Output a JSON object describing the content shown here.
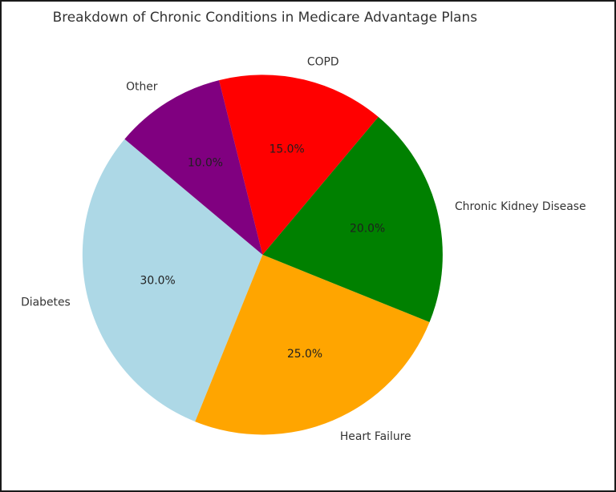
{
  "chart_data": {
    "type": "pie",
    "title": "Breakdown of Chronic Conditions in Medicare Advantage Plans",
    "categories": [
      "Diabetes",
      "Heart Failure",
      "Chronic Kidney Disease",
      "COPD",
      "Other"
    ],
    "values": [
      30.0,
      25.0,
      20.0,
      15.0,
      10.0
    ],
    "percent_labels": [
      "30.0%",
      "25.0%",
      "20.0%",
      "15.0%",
      "10.0%"
    ],
    "colors": [
      "#add8e6",
      "#ffa500",
      "#008000",
      "#ff0000",
      "#800080"
    ],
    "start_angle_deg": 140,
    "direction": "counterclockwise",
    "label_distance": 1.1,
    "pct_distance": 0.6,
    "legend": "none",
    "background_color": "#ffffff",
    "frame_border_color": "#1a1a1a",
    "title_color": "#333333",
    "label_color": "#333333",
    "pct_label_color": "#1f1f1f"
  }
}
